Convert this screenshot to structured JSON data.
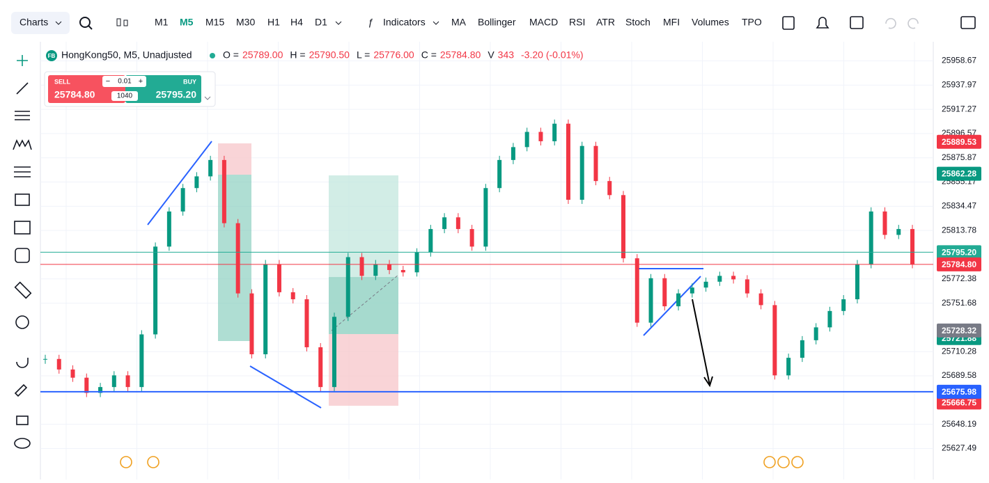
{
  "toolbar": {
    "charts": "Charts",
    "timeframes": [
      "M1",
      "M5",
      "M15",
      "M30",
      "H1",
      "H4",
      "D1"
    ],
    "active_timeframe": "M5",
    "indicators": "Indicators",
    "studies": [
      "MA",
      "Bollinger",
      "MACD",
      "RSI",
      "ATR",
      "Stoch",
      "MFI",
      "Volumes",
      "TPO"
    ]
  },
  "legend": {
    "icon": "FB",
    "symbol": "HongKong50, M5, Unadjusted",
    "fields": [
      {
        "label": "O =",
        "value": "25789.00"
      },
      {
        "label": "H =",
        "value": "25790.50"
      },
      {
        "label": "L =",
        "value": "25776.00"
      },
      {
        "label": "C =",
        "value": "25784.80"
      },
      {
        "label": "V",
        "value": "343"
      }
    ],
    "change": "-3.20 (-0.01%)"
  },
  "trade": {
    "sell_label": "SELL",
    "sell_price": "25784.80",
    "buy_label": "BUY",
    "buy_price": "25795.20",
    "lot": "0.01",
    "spread": "1040"
  },
  "price_axis": {
    "ylim": [
      25601,
      25975
    ],
    "ticks": [
      {
        "value": 25958.67,
        "label": "25958.67"
      },
      {
        "value": 25937.97,
        "label": "25937.97"
      },
      {
        "value": 25917.27,
        "label": "25917.27"
      },
      {
        "value": 25896.57,
        "label": "25896.57"
      },
      {
        "value": 25875.87,
        "label": "25875.87"
      },
      {
        "value": 25855.17,
        "label": "25855.17"
      },
      {
        "value": 25834.47,
        "label": "25834.47"
      },
      {
        "value": 25813.78,
        "label": "25813.78"
      },
      {
        "value": 25772.38,
        "label": "25772.38"
      },
      {
        "value": 25751.68,
        "label": "25751.68"
      },
      {
        "value": 25710.28,
        "label": "25710.28"
      },
      {
        "value": 25689.58,
        "label": "25689.58"
      },
      {
        "value": 25648.19,
        "label": "25648.19"
      },
      {
        "value": 25627.49,
        "label": "25627.49"
      }
    ],
    "badges": [
      {
        "value": 25889.53,
        "label": "25889.53",
        "color": "#f23645"
      },
      {
        "value": 25862.28,
        "label": "25862.28",
        "color": "#089981"
      },
      {
        "value": 25795.2,
        "label": "25795.20",
        "color": "#22ab94"
      },
      {
        "value": 25784.8,
        "label": "25784.80",
        "color": "#f23645"
      },
      {
        "value": 25721.88,
        "label": "25721.88",
        "color": "#089981"
      },
      {
        "value": 25728.32,
        "label": "25728.32",
        "color": "#787b86"
      },
      {
        "value": 25666.75,
        "label": "25666.75",
        "color": "#f23645"
      },
      {
        "value": 25675.98,
        "label": "25675.98",
        "color": "#2962ff"
      }
    ],
    "lines": [
      {
        "value": 25795.2,
        "color": "#22ab94"
      },
      {
        "value": 25784.8,
        "color": "#f23645"
      },
      {
        "value": 25675.98,
        "color": "#2962ff"
      }
    ]
  },
  "candles": {
    "up_color": "#089981",
    "down_color": "#f23645",
    "closes": [
      25704,
      25695,
      25688,
      25675,
      25680,
      25690,
      25680,
      25725,
      25800,
      25830,
      25850,
      25860,
      25874,
      25820,
      25760,
      25708,
      25785,
      25761,
      25755,
      25714,
      25680,
      25740,
      25791,
      25775,
      25785,
      25780,
      25778,
      25795,
      25815,
      25825,
      25815,
      25800,
      25850,
      25874,
      25885,
      25898,
      25890,
      25905,
      25840,
      25886,
      25856,
      25844,
      25790,
      25735,
      25773,
      25749,
      25760,
      25765,
      25770,
      25775,
      25772,
      25760,
      25750,
      25690,
      25705,
      25720,
      25731,
      25745,
      25755,
      25785,
      25830,
      25810,
      25815,
      25785
    ]
  }
}
